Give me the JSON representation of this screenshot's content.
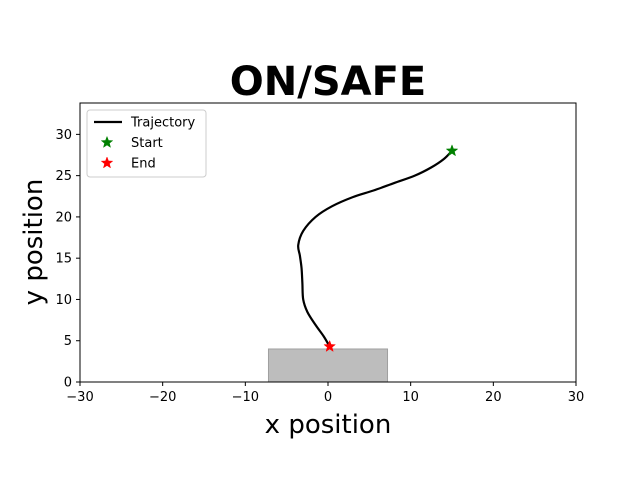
{
  "chart_data": {
    "type": "line",
    "title": "ON/SAFE",
    "xlabel": "x position",
    "ylabel": "y position",
    "xlim": [
      -30,
      30
    ],
    "ylim": [
      0,
      33.8
    ],
    "xticks": [
      -30,
      -20,
      -10,
      0,
      10,
      20,
      30
    ],
    "yticks": [
      0,
      5,
      10,
      15,
      20,
      25,
      30
    ],
    "xtick_labels": [
      "−30",
      "−20",
      "−10",
      "0",
      "10",
      "20",
      "30"
    ],
    "ytick_labels": [
      "0",
      "5",
      "10",
      "15",
      "20",
      "25",
      "30"
    ],
    "grid": false,
    "legend_position": "top-left",
    "series": [
      {
        "name": "Trajectory",
        "color": "#000000",
        "x": [
          15.0,
          14.0,
          12.5,
          10.5,
          8.0,
          5.5,
          3.0,
          0.5,
          -1.5,
          -3.0,
          -3.6,
          -3.4,
          -3.2,
          -3.1,
          -3.0,
          -2.5,
          -1.5,
          -0.5,
          0.2
        ],
        "y": [
          28.0,
          27.0,
          26.0,
          25.0,
          24.1,
          23.2,
          22.4,
          21.3,
          20.0,
          18.3,
          16.6,
          15.3,
          13.8,
          12.0,
          10.0,
          8.5,
          6.9,
          5.5,
          4.3
        ]
      },
      {
        "name": "Start",
        "color": "#008000",
        "marker": "star",
        "x": [
          15.0
        ],
        "y": [
          28.0
        ]
      },
      {
        "name": "End",
        "color": "#ff0000",
        "marker": "star",
        "x": [
          0.2
        ],
        "y": [
          4.3
        ]
      }
    ],
    "region": {
      "shape": "rectangle",
      "color": "#bdbdbd",
      "x": [
        -7.2,
        7.2
      ],
      "y": [
        0,
        4.0
      ]
    }
  }
}
